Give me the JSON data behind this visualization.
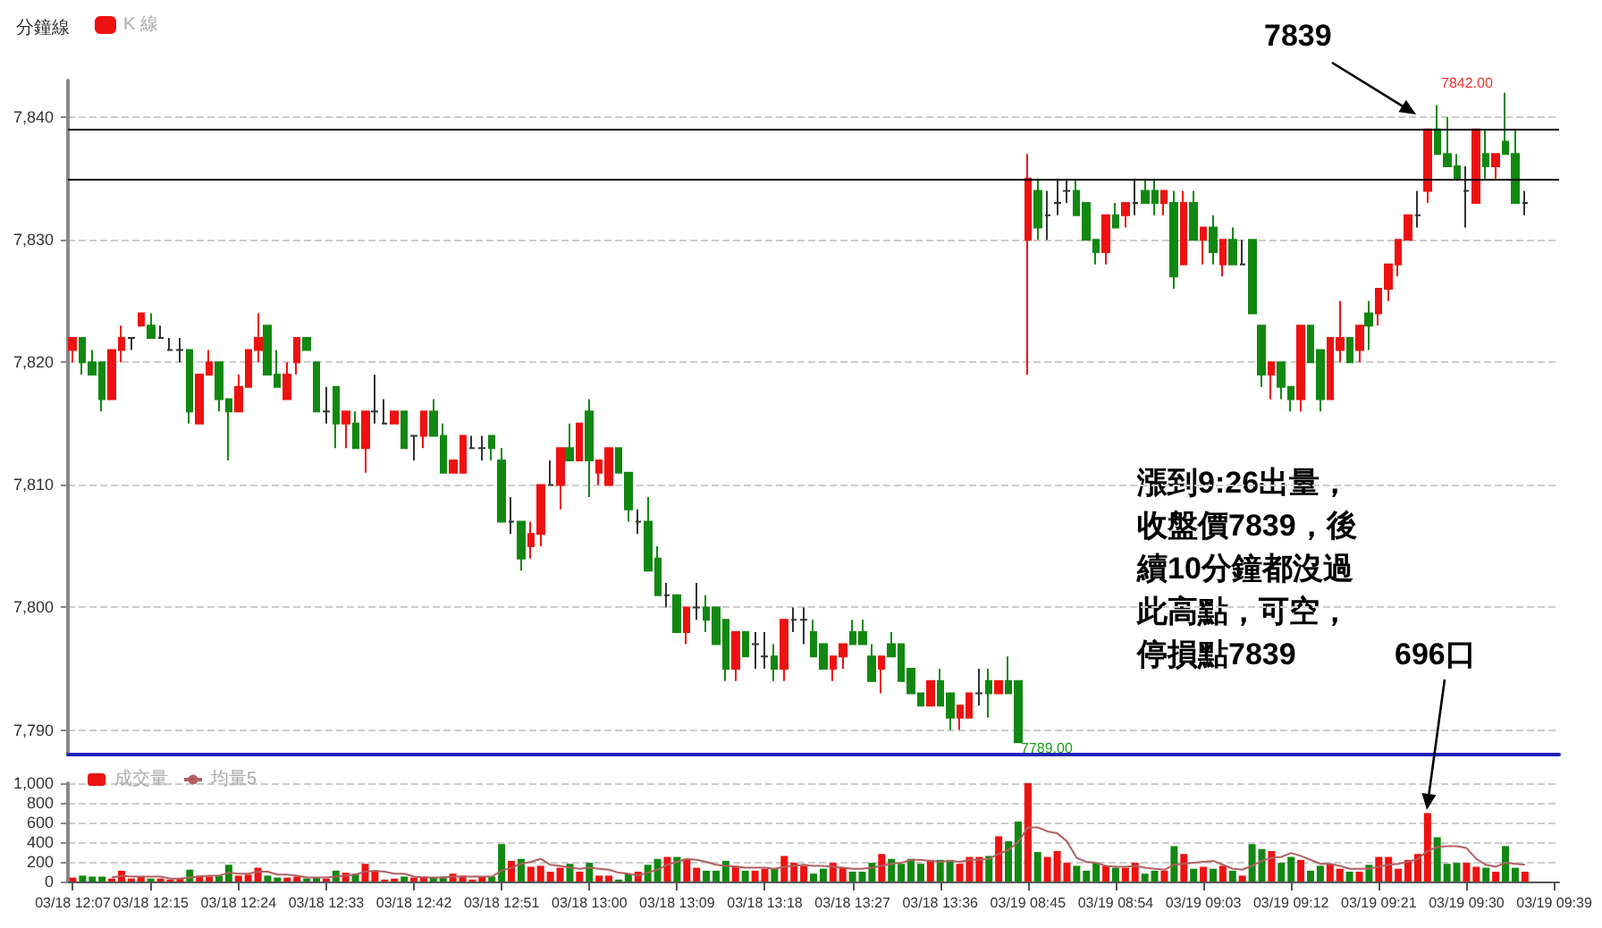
{
  "chart_data": [
    {
      "type": "candlestick",
      "title": "分鐘線",
      "legend": "top left",
      "grid": "y",
      "tick_labels": "y",
      "categories": [
        null,
        null,
        null,
        null,
        null,
        null,
        null,
        null,
        null,
        null,
        null,
        null,
        null,
        null,
        null,
        null,
        null,
        null,
        null,
        null,
        null,
        null,
        null,
        null,
        null,
        null,
        null,
        null,
        null,
        null,
        null,
        null,
        null,
        null,
        null,
        null,
        null,
        null,
        null,
        null,
        null,
        null,
        null,
        null,
        null,
        null,
        null,
        null,
        null,
        null,
        null,
        null,
        null,
        null,
        null,
        null,
        null,
        null,
        null,
        null,
        null,
        null,
        null,
        null,
        null,
        null,
        null,
        null,
        null,
        null,
        null,
        null,
        null,
        null,
        null,
        null,
        null,
        null,
        null,
        null,
        null,
        null,
        null,
        null,
        null,
        null,
        null,
        null,
        null,
        null,
        null,
        null,
        null,
        null,
        null,
        null,
        null,
        null,
        null,
        null,
        null,
        null,
        null,
        null,
        null,
        null,
        null,
        null,
        null,
        null,
        null,
        null,
        null,
        null,
        null,
        null,
        null,
        null,
        null,
        null,
        null,
        null,
        null,
        null,
        null,
        null,
        null,
        null,
        null,
        null,
        null,
        null,
        null,
        null,
        null,
        null,
        null,
        null,
        null,
        null,
        null,
        null,
        null,
        null,
        null,
        null,
        null,
        null,
        null,
        null,
        null,
        null,
        null
      ],
      "series": [
        {
          "name": "K 線",
          "colors": [
            "#ee1111",
            "#118811",
            "#118811",
            "#118811",
            "#ee1111",
            "#ee1111",
            "#333333",
            "#ee1111",
            "#118811",
            "#333333",
            "#333333",
            "#333333",
            "#118811",
            "#ee1111",
            "#ee1111",
            "#118811",
            "#118811",
            "#ee1111",
            "#ee1111",
            "#ee1111",
            "#118811",
            "#118811",
            "#ee1111",
            "#ee1111",
            "#118811",
            "#118811",
            "#333333",
            "#118811",
            "#ee1111",
            "#118811",
            "#ee1111",
            "#333333",
            "#333333",
            "#ee1111",
            "#118811",
            "#333333",
            "#ee1111",
            "#118811",
            "#118811",
            "#ee1111",
            "#ee1111",
            "#333333",
            "#333333",
            "#118811",
            "#118811",
            "#333333",
            "#118811",
            "#ee1111",
            "#ee1111",
            "#333333",
            "#ee1111",
            "#118811",
            "#ee1111",
            "#118811",
            "#ee1111",
            "#ee1111",
            "#118811",
            "#118811",
            "#333333",
            "#118811",
            "#118811",
            "#333333",
            "#118811",
            "#ee1111",
            "#333333",
            "#118811",
            "#118811",
            "#118811",
            "#ee1111",
            "#118811",
            "#333333",
            "#333333",
            "#118811",
            "#ee1111",
            "#333333",
            "#333333",
            "#118811",
            "#118811",
            "#ee1111",
            "#ee1111",
            "#118811",
            "#118811",
            "#118811",
            "#ee1111",
            "#118811",
            "#118811",
            "#118811",
            "#118811",
            "#ee1111",
            "#118811",
            "#118811",
            "#ee1111",
            "#ee1111",
            "#333333",
            "#118811",
            "#ee1111",
            "#118811",
            "#118811",
            "#ee1111",
            "#118811",
            "#333333",
            "#333333",
            "#333333",
            "#118811",
            "#118811",
            "#118811",
            "#ee1111",
            "#118811",
            "#ee1111",
            "#333333",
            "#118811",
            "#118811",
            "#ee1111",
            "#118811",
            "#ee1111",
            "#118811",
            "#ee1111",
            "#118811",
            "#ee1111",
            "#118811",
            "#333333",
            "#118811",
            "#118811",
            "#ee1111",
            "#118811",
            "#118811",
            "#ee1111",
            "#118811",
            "#118811",
            "#ee1111",
            "#ee1111",
            "#118811",
            "#ee1111",
            "#118811",
            "#ee1111",
            "#ee1111",
            "#ee1111",
            "#ee1111",
            "#333333",
            "#ee1111",
            "#118811",
            "#118811",
            "#118811",
            "#333333",
            "#ee1111",
            "#118811",
            "#ee1111",
            "#118811",
            "#118811",
            "#333333",
            null,
            null,
            null
          ],
          "ohlc": [
            [
              7821,
              7822,
              7820,
              7822
            ],
            [
              7822,
              7822,
              7819,
              7820
            ],
            [
              7820,
              7821,
              7819,
              7819
            ],
            [
              7820,
              7820,
              7816,
              7817
            ],
            [
              7817,
              7821,
              7817,
              7821
            ],
            [
              7821,
              7823,
              7820,
              7822
            ],
            [
              7822,
              7822,
              7821,
              7822
            ],
            [
              7823,
              7824,
              7823,
              7824
            ],
            [
              7823,
              7824,
              7822,
              7822
            ],
            [
              7822,
              7823,
              7822,
              7822
            ],
            [
              7821,
              7822,
              7821,
              7821
            ],
            [
              7821,
              7822,
              7820,
              7821
            ],
            [
              7821,
              7821,
              7815,
              7816
            ],
            [
              7815,
              7819,
              7815,
              7819
            ],
            [
              7819,
              7821,
              7819,
              7820
            ],
            [
              7820,
              7820,
              7816,
              7817
            ],
            [
              7817,
              7817,
              7812,
              7816
            ],
            [
              7816,
              7819,
              7816,
              7818
            ],
            [
              7818,
              7821,
              7818,
              7821
            ],
            [
              7821,
              7824,
              7820,
              7822
            ],
            [
              7823,
              7823,
              7819,
              7819
            ],
            [
              7819,
              7821,
              7818,
              7818
            ],
            [
              7817,
              7820,
              7817,
              7819
            ],
            [
              7820,
              7822,
              7819,
              7822
            ],
            [
              7822,
              7822,
              7821,
              7821
            ],
            [
              7820,
              7820,
              7816,
              7816
            ],
            [
              7816,
              7818,
              7815,
              7816
            ],
            [
              7818,
              7818,
              7813,
              7815
            ],
            [
              7815,
              7816,
              7813,
              7816
            ],
            [
              7815,
              7816,
              7813,
              7813
            ],
            [
              7813,
              7816,
              7811,
              7816
            ],
            [
              7816,
              7819,
              7815,
              7816
            ],
            [
              7815,
              7817,
              7815,
              7815
            ],
            [
              7815,
              7816,
              7815,
              7816
            ],
            [
              7816,
              7816,
              7813,
              7813
            ],
            [
              7814,
              7814,
              7812,
              7814
            ],
            [
              7814,
              7816,
              7813,
              7816
            ],
            [
              7816,
              7817,
              7814,
              7814
            ],
            [
              7814,
              7815,
              7811,
              7811
            ],
            [
              7811,
              7812,
              7811,
              7812
            ],
            [
              7811,
              7814,
              7811,
              7814
            ],
            [
              7813,
              7814,
              7813,
              7813
            ],
            [
              7813,
              7814,
              7812,
              7813
            ],
            [
              7814,
              7814,
              7812,
              7813
            ],
            [
              7812,
              7813,
              7807,
              7807
            ],
            [
              7807,
              7809,
              7806,
              7807
            ],
            [
              7807,
              7807,
              7803,
              7804
            ],
            [
              7805,
              7807,
              7804,
              7806
            ],
            [
              7806,
              7810,
              7805,
              7810
            ],
            [
              7810,
              7812,
              7810,
              7810
            ],
            [
              7810,
              7813,
              7808,
              7813
            ],
            [
              7813,
              7815,
              7812,
              7812
            ],
            [
              7812,
              7815,
              7812,
              7815
            ],
            [
              7816,
              7817,
              7809,
              7812
            ],
            [
              7811,
              7812,
              7810,
              7812
            ],
            [
              7810,
              7813,
              7810,
              7813
            ],
            [
              7813,
              7813,
              7811,
              7811
            ],
            [
              7811,
              7811,
              7807,
              7808
            ],
            [
              7807,
              7808,
              7806,
              7807
            ],
            [
              7807,
              7809,
              7803,
              7803
            ],
            [
              7804,
              7805,
              7801,
              7801
            ],
            [
              7801,
              7802,
              7800,
              7801
            ],
            [
              7801,
              7801,
              7798,
              7798
            ],
            [
              7798,
              7800,
              7797,
              7800
            ],
            [
              7800,
              7802,
              7799,
              7800
            ],
            [
              7800,
              7801,
              7798,
              7799
            ],
            [
              7800,
              7800,
              7797,
              7797
            ],
            [
              7799,
              7799,
              7794,
              7795
            ],
            [
              7795,
              7798,
              7794,
              7798
            ],
            [
              7798,
              7798,
              7796,
              7796
            ],
            [
              7797,
              7798,
              7795,
              7797
            ],
            [
              7796,
              7798,
              7795,
              7796
            ],
            [
              7796,
              7797,
              7794,
              7795
            ],
            [
              7795,
              7799,
              7794,
              7799
            ],
            [
              7799,
              7800,
              7798,
              7799
            ],
            [
              7799,
              7800,
              7797,
              7799
            ],
            [
              7798,
              7799,
              7796,
              7796
            ],
            [
              7797,
              7797,
              7795,
              7795
            ],
            [
              7795,
              7796,
              7794,
              7796
            ],
            [
              7796,
              7797,
              7795,
              7797
            ],
            [
              7798,
              7799,
              7797,
              7797
            ],
            [
              7798,
              7799,
              7797,
              7797
            ],
            [
              7796,
              7797,
              7794,
              7794
            ],
            [
              7795,
              7796,
              7793,
              7796
            ],
            [
              7797,
              7798,
              7796,
              7796
            ],
            [
              7797,
              7797,
              7794,
              7794
            ],
            [
              7795,
              7795,
              7793,
              7793
            ],
            [
              7793,
              7793,
              7792,
              7792
            ],
            [
              7792,
              7794,
              7792,
              7794
            ],
            [
              7794,
              7795,
              7792,
              7792
            ],
            [
              7793,
              7793,
              7790,
              7791
            ],
            [
              7791,
              7792,
              7790,
              7792
            ],
            [
              7791,
              7793,
              7791,
              7793
            ],
            [
              7793,
              7795,
              7792,
              7793
            ],
            [
              7794,
              7795,
              7791,
              7793
            ],
            [
              7793,
              7794,
              7793,
              7794
            ],
            [
              7794,
              7796,
              7793,
              7793
            ],
            [
              7794,
              7794,
              7789,
              7789
            ],
            [
              7830,
              7837,
              7819,
              7835
            ],
            [
              7834,
              7835,
              7830,
              7831
            ],
            [
              7832,
              7834,
              7830,
              7832
            ],
            [
              7833,
              7835,
              7832,
              7833
            ],
            [
              7834,
              7835,
              7833,
              7834
            ],
            [
              7834,
              7835,
              7832,
              7832
            ],
            [
              7833,
              7833,
              7830,
              7830
            ],
            [
              7830,
              7830,
              7828,
              7829
            ],
            [
              7829,
              7832,
              7828,
              7832
            ],
            [
              7832,
              7833,
              7831,
              7831
            ],
            [
              7832,
              7833,
              7831,
              7833
            ],
            [
              7833,
              7835,
              7832,
              7833
            ],
            [
              7834,
              7835,
              7833,
              7833
            ],
            [
              7834,
              7835,
              7832,
              7833
            ],
            [
              7833,
              7834,
              7832,
              7834
            ],
            [
              7833,
              7834,
              7826,
              7827
            ],
            [
              7828,
              7834,
              7828,
              7833
            ],
            [
              7833,
              7834,
              7830,
              7830
            ],
            [
              7830,
              7831,
              7828,
              7831
            ],
            [
              7831,
              7832,
              7828,
              7829
            ],
            [
              7828,
              7830,
              7827,
              7830
            ],
            [
              7830,
              7831,
              7828,
              7828
            ],
            [
              7828,
              7830,
              7828,
              7828
            ],
            [
              7830,
              7830,
              7824,
              7824
            ],
            [
              7823,
              7823,
              7818,
              7819
            ],
            [
              7819,
              7820,
              7817,
              7820
            ],
            [
              7820,
              7820,
              7817,
              7818
            ],
            [
              7818,
              7818,
              7816,
              7817
            ],
            [
              7817,
              7823,
              7816,
              7823
            ],
            [
              7823,
              7823,
              7820,
              7820
            ],
            [
              7821,
              7821,
              7816,
              7817
            ],
            [
              7817,
              7822,
              7817,
              7822
            ],
            [
              7821,
              7825,
              7820,
              7822
            ],
            [
              7822,
              7822,
              7820,
              7820
            ],
            [
              7821,
              7823,
              7820,
              7823
            ],
            [
              7824,
              7825,
              7821,
              7823
            ],
            [
              7824,
              7826,
              7823,
              7826
            ],
            [
              7826,
              7828,
              7825,
              7828
            ],
            [
              7828,
              7830,
              7827,
              7830
            ],
            [
              7830,
              7832,
              7830,
              7832
            ],
            [
              7832,
              7834,
              7831,
              7832
            ],
            [
              7834,
              7839,
              7833,
              7839
            ],
            [
              7839,
              7841,
              7837,
              7837
            ],
            [
              7837,
              7840,
              7836,
              7836
            ],
            [
              7836,
              7837,
              7835,
              7835
            ],
            [
              7834,
              7836,
              7831,
              7834
            ],
            [
              7833,
              7839,
              7833,
              7839
            ],
            [
              7837,
              7839,
              7835,
              7836
            ],
            [
              7836,
              7837,
              7835,
              7837
            ],
            [
              7838,
              7842,
              7837,
              7837
            ],
            [
              7837,
              7839,
              7833,
              7833
            ],
            [
              7833,
              7834,
              7832,
              7833
            ],
            null,
            null,
            null
          ]
        }
      ],
      "ylim": [
        7788,
        7843
      ],
      "yticks": [
        {
          "value": 7790,
          "label": "7,790"
        },
        {
          "value": 7800,
          "label": "7,800"
        },
        {
          "value": 7810,
          "label": "7,810"
        },
        {
          "value": 7820,
          "label": "7,820"
        },
        {
          "value": 7830,
          "label": "7,830"
        },
        {
          "value": 7840,
          "label": "7,840"
        }
      ],
      "ref_lines": [
        {
          "axis": "y",
          "value": 7839,
          "color": "#000000",
          "line_style": "solid"
        },
        {
          "axis": "y",
          "value": 7835,
          "color": "#000000",
          "line_style": "solid"
        }
      ],
      "annotations": [
        "7839",
        "漲到9:26出量，收盤價7839，後續10分鐘都沒過此高點，可空，停損點7839",
        "696口",
        "7842.00",
        "7789.00"
      ]
    },
    {
      "type": "bar",
      "legend": "top left",
      "grid": "y",
      "marker": "none",
      "categories": [
        "03/18 12:07",
        null,
        null,
        null,
        null,
        null,
        null,
        null,
        "03/18 12:15",
        null,
        null,
        null,
        null,
        null,
        null,
        null,
        null,
        "03/18 12:24",
        null,
        null,
        null,
        null,
        null,
        null,
        null,
        null,
        "03/18 12:33",
        null,
        null,
        null,
        null,
        null,
        null,
        null,
        null,
        "03/18 12:42",
        null,
        null,
        null,
        null,
        null,
        null,
        null,
        null,
        "03/18 12:51",
        null,
        null,
        null,
        null,
        null,
        null,
        null,
        null,
        "03/18 13:00",
        null,
        null,
        null,
        null,
        null,
        null,
        null,
        null,
        "03/18 13:09",
        null,
        null,
        null,
        null,
        null,
        null,
        null,
        null,
        "03/18 13:18",
        null,
        null,
        null,
        null,
        null,
        null,
        null,
        null,
        "03/18 13:27",
        null,
        null,
        null,
        null,
        null,
        null,
        null,
        null,
        "03/18 13:36",
        null,
        null,
        null,
        null,
        null,
        null,
        null,
        null,
        "03/19 08:45",
        null,
        null,
        null,
        null,
        null,
        null,
        null,
        null,
        "03/19 08:54",
        null,
        null,
        null,
        null,
        null,
        null,
        null,
        null,
        "03/19 09:03",
        null,
        null,
        null,
        null,
        null,
        null,
        null,
        null,
        "03/19 09:12",
        null,
        null,
        null,
        null,
        null,
        null,
        null,
        null,
        "03/19 09:21",
        null,
        null,
        null,
        null,
        null,
        null,
        null,
        null,
        "03/19 09:30",
        null,
        null,
        null,
        null,
        null,
        null,
        null,
        null,
        "03/19 09:39"
      ],
      "series": [
        {
          "name": "成交量",
          "type": "bar",
          "color": "#ee1111",
          "colors": [
            "#ee1111",
            "#118811",
            "#118811",
            "#118811",
            "#ee1111",
            "#ee1111",
            "#ee1111",
            "#ee1111",
            "#118811",
            "#ee1111",
            "#ee1111",
            "#ee1111",
            "#118811",
            "#ee1111",
            "#ee1111",
            "#118811",
            "#118811",
            "#ee1111",
            "#ee1111",
            "#ee1111",
            "#118811",
            "#118811",
            "#ee1111",
            "#ee1111",
            "#118811",
            "#118811",
            "#ee1111",
            "#118811",
            "#ee1111",
            "#118811",
            "#ee1111",
            "#ee1111",
            "#ee1111",
            "#ee1111",
            "#118811",
            "#ee1111",
            "#ee1111",
            "#118811",
            "#118811",
            "#ee1111",
            "#ee1111",
            "#ee1111",
            "#ee1111",
            "#118811",
            "#118811",
            "#ee1111",
            "#118811",
            "#ee1111",
            "#ee1111",
            "#ee1111",
            "#ee1111",
            "#118811",
            "#ee1111",
            "#118811",
            "#ee1111",
            "#ee1111",
            "#118811",
            "#118811",
            "#ee1111",
            "#118811",
            "#118811",
            "#ee1111",
            "#118811",
            "#ee1111",
            "#ee1111",
            "#118811",
            "#118811",
            "#118811",
            "#ee1111",
            "#118811",
            "#ee1111",
            "#ee1111",
            "#118811",
            "#ee1111",
            "#ee1111",
            "#ee1111",
            "#118811",
            "#118811",
            "#ee1111",
            "#ee1111",
            "#118811",
            "#118811",
            "#118811",
            "#ee1111",
            "#118811",
            "#118811",
            "#118811",
            "#118811",
            "#ee1111",
            "#118811",
            "#118811",
            "#ee1111",
            "#ee1111",
            "#ee1111",
            "#118811",
            "#ee1111",
            "#118811",
            "#118811",
            "#ee1111",
            "#118811",
            "#ee1111",
            "#ee1111",
            "#ee1111",
            "#118811",
            "#118811",
            "#118811",
            "#ee1111",
            "#118811",
            "#ee1111",
            "#ee1111",
            "#118811",
            "#118811",
            "#ee1111",
            "#118811",
            "#ee1111",
            "#118811",
            "#ee1111",
            "#118811",
            "#ee1111",
            "#118811",
            "#ee1111",
            "#118811",
            "#118811",
            "#ee1111",
            "#118811",
            "#118811",
            "#ee1111",
            "#118811",
            "#118811",
            "#ee1111",
            "#ee1111",
            "#118811",
            "#ee1111",
            "#118811",
            "#ee1111",
            "#ee1111",
            "#ee1111",
            "#ee1111",
            "#ee1111",
            "#ee1111",
            "#118811",
            "#118811",
            "#118811",
            "#ee1111",
            "#ee1111",
            "#118811",
            "#ee1111",
            "#118811",
            "#118811",
            "#ee1111",
            null,
            null,
            null
          ],
          "values": [
            40,
            60,
            50,
            50,
            30,
            110,
            30,
            50,
            30,
            30,
            20,
            30,
            120,
            60,
            50,
            60,
            170,
            60,
            70,
            140,
            60,
            40,
            40,
            50,
            30,
            40,
            30,
            110,
            90,
            80,
            180,
            110,
            20,
            30,
            50,
            40,
            50,
            40,
            50,
            80,
            60,
            20,
            50,
            50,
            380,
            210,
            230,
            150,
            160,
            100,
            140,
            180,
            100,
            190,
            60,
            60,
            20,
            80,
            100,
            170,
            230,
            250,
            250,
            230,
            140,
            110,
            110,
            210,
            160,
            110,
            110,
            130,
            130,
            260,
            190,
            160,
            80,
            130,
            190,
            140,
            100,
            100,
            190,
            280,
            230,
            180,
            230,
            180,
            220,
            220,
            220,
            180,
            250,
            250,
            260,
            460,
            410,
            610,
            1000,
            300,
            250,
            310,
            190,
            160,
            110,
            190,
            160,
            140,
            140,
            190,
            80,
            110,
            110,
            360,
            280,
            130,
            150,
            130,
            160,
            110,
            60,
            380,
            330,
            310,
            190,
            250,
            220,
            110,
            160,
            180,
            130,
            100,
            100,
            170,
            250,
            250,
            130,
            220,
            280,
            696,
            450,
            180,
            190,
            190,
            150,
            140,
            100,
            360,
            140,
            100,
            null,
            null,
            null
          ]
        },
        {
          "name": "均量5",
          "type": "line",
          "color": "#b06060",
          "values": [
            null,
            null,
            null,
            null,
            40,
            60,
            50,
            50,
            50,
            50,
            30,
            30,
            40,
            50,
            60,
            60,
            90,
            80,
            80,
            100,
            100,
            70,
            70,
            60,
            40,
            40,
            40,
            50,
            60,
            70,
            100,
            110,
            100,
            80,
            80,
            50,
            40,
            40,
            40,
            50,
            50,
            50,
            50,
            50,
            110,
            140,
            180,
            200,
            230,
            170,
            160,
            140,
            130,
            140,
            130,
            120,
            90,
            80,
            60,
            90,
            120,
            170,
            200,
            230,
            220,
            200,
            170,
            160,
            150,
            140,
            140,
            140,
            130,
            150,
            160,
            170,
            160,
            160,
            150,
            140,
            130,
            130,
            140,
            160,
            180,
            190,
            220,
            220,
            210,
            200,
            210,
            200,
            220,
            220,
            230,
            280,
            320,
            400,
            550,
            550,
            510,
            490,
            410,
            240,
            200,
            190,
            160,
            150,
            150,
            160,
            140,
            130,
            120,
            170,
            180,
            190,
            200,
            210,
            170,
            130,
            120,
            160,
            210,
            240,
            250,
            290,
            260,
            220,
            180,
            180,
            160,
            130,
            130,
            130,
            150,
            170,
            180,
            200,
            230,
            310,
            350,
            360,
            360,
            340,
            230,
            170,
            150,
            190,
            180,
            170,
            null,
            null,
            null
          ]
        }
      ],
      "ylim": [
        0,
        1000
      ],
      "yticks": [
        0,
        200,
        400,
        600,
        800,
        {
          "value": 1000,
          "label": "1,000"
        }
      ]
    }
  ]
}
